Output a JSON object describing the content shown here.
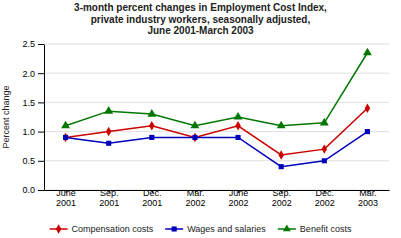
{
  "chart_data": {
    "type": "line",
    "title": "3-month percent changes in Employment Cost Index,\nprivate industry workers, seasonally adjusted,\nJune 2001-March 2003",
    "categories": [
      "June\n2001",
      "Sep.\n2001",
      "Dec.\n2001",
      "Mar.\n2002",
      "June\n2002",
      "Sep.\n2002",
      "Dec.\n2002",
      "Mar.\n2003"
    ],
    "ylabel": "Percent change",
    "series": [
      {
        "name": "Compensation costs",
        "color": "#CC0000",
        "marker": "diamond",
        "values": [
          0.9,
          1.0,
          1.1,
          0.9,
          1.1,
          0.6,
          0.7,
          1.4
        ]
      },
      {
        "name": "Wages and salaries",
        "color": "#0000BB",
        "marker": "square",
        "values": [
          0.9,
          0.8,
          0.9,
          0.9,
          0.9,
          0.4,
          0.5,
          1.0
        ]
      },
      {
        "name": "Benefit costs",
        "color": "#007700",
        "marker": "triangle",
        "values": [
          1.1,
          1.35,
          1.3,
          1.1,
          1.25,
          1.1,
          1.15,
          2.35
        ]
      }
    ],
    "ylim": [
      0.0,
      2.5
    ],
    "yticks": [
      {
        "value": 0,
        "label": "0.0"
      },
      {
        "value": 0.5,
        "label": "0.5"
      },
      {
        "value": 1,
        "label": "1.0"
      },
      {
        "value": 1.5,
        "label": "1.5"
      },
      {
        "value": 2,
        "label": "2.0"
      },
      {
        "value": 2.5,
        "label": "2.5"
      }
    ],
    "grid": true,
    "legend": "bottom"
  }
}
